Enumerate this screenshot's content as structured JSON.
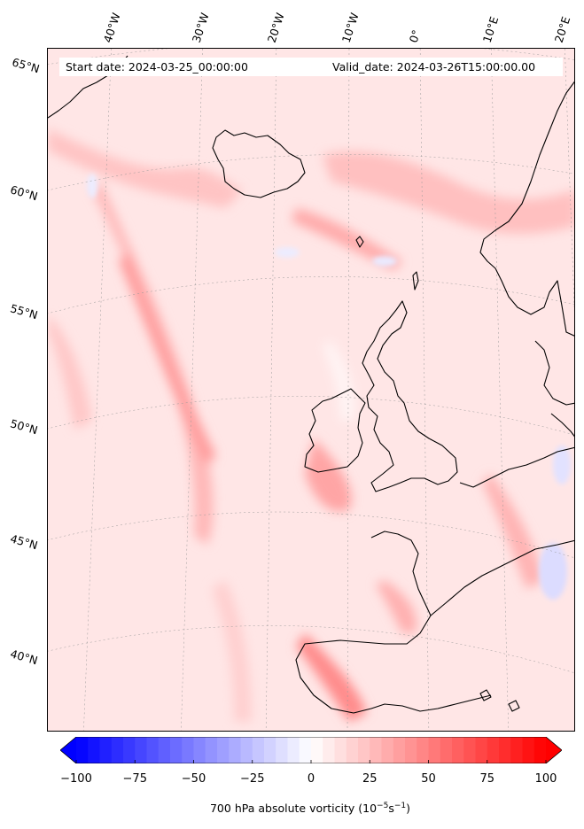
{
  "map": {
    "start_date_text": "Start date: 2024-03-25_00:00:00",
    "valid_date_text": "Valid_date: 2024-03-26T15:00:00.00",
    "longitude_labels": [
      "40°W",
      "30°W",
      "20°W",
      "10°W",
      "0°",
      "10°E",
      "20°E"
    ],
    "latitude_labels": [
      "65°N",
      "60°N",
      "55°N",
      "50°N",
      "45°N",
      "40°N"
    ],
    "projection": "polar stereographic / conic",
    "field": "700 hPa absolute vorticity",
    "coastline_color": "#000000",
    "colors": {
      "positive": "#ff0000",
      "negative": "#0000ff",
      "neutral": "#ffffff"
    }
  },
  "colorbar": {
    "min": -100,
    "max": 100,
    "step": 5,
    "ticks": [
      "−100",
      "−75",
      "−50",
      "−25",
      "0",
      "25",
      "50",
      "75",
      "100"
    ],
    "title_prefix": "700 hPa absolute vorticity (10",
    "title_exp1": "−5",
    "title_mid": "s",
    "title_exp2": "−1",
    "title_suffix": ")"
  }
}
